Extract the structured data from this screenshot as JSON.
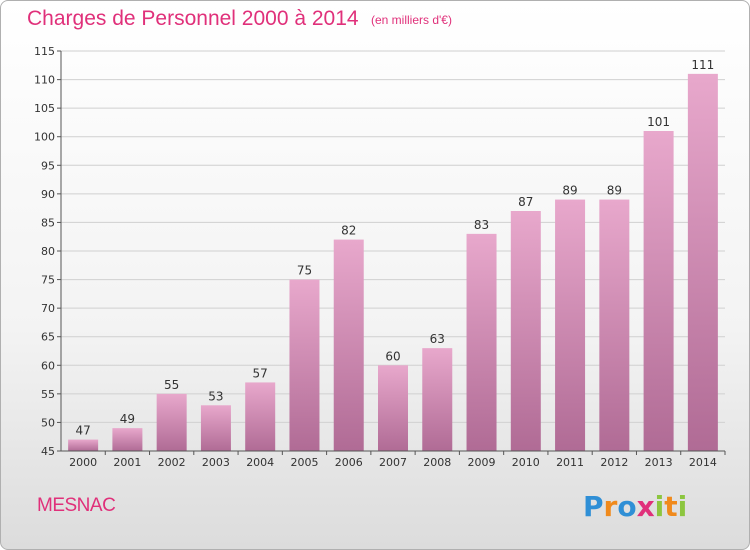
{
  "title": "Charges de Personnel 2000 à 2014",
  "subtitle": "(en milliers d'€)",
  "commune": "MESNAC",
  "logo": {
    "text": "Proxiti",
    "letters": [
      {
        "ch": "P",
        "color": "#2f8fd6"
      },
      {
        "ch": "r",
        "color": "#f08a1c"
      },
      {
        "ch": "o",
        "color": "#2f8fd6"
      },
      {
        "ch": "x",
        "color": "#e0307a"
      },
      {
        "ch": "i",
        "color": "#8cc63f"
      },
      {
        "ch": "t",
        "color": "#f08a1c"
      },
      {
        "ch": "i",
        "color": "#8cc63f"
      }
    ]
  },
  "colors": {
    "accent": "#e0307a",
    "bar_top": "#e8a8cc",
    "bar_bottom": "#b06b95",
    "axis": "#555555",
    "grid": "#d0d0d0"
  },
  "chart_data": {
    "type": "bar",
    "categories": [
      "2000",
      "2001",
      "2002",
      "2003",
      "2004",
      "2005",
      "2006",
      "2007",
      "2008",
      "2009",
      "2010",
      "2011",
      "2012",
      "2013",
      "2014"
    ],
    "values": [
      47,
      49,
      55,
      53,
      57,
      75,
      82,
      60,
      63,
      83,
      87,
      89,
      89,
      101,
      111
    ],
    "ylim": [
      45,
      115
    ],
    "yticks": [
      45,
      50,
      55,
      60,
      65,
      70,
      75,
      80,
      85,
      90,
      95,
      100,
      105,
      110,
      115
    ],
    "grid": true,
    "data_labels": true
  }
}
